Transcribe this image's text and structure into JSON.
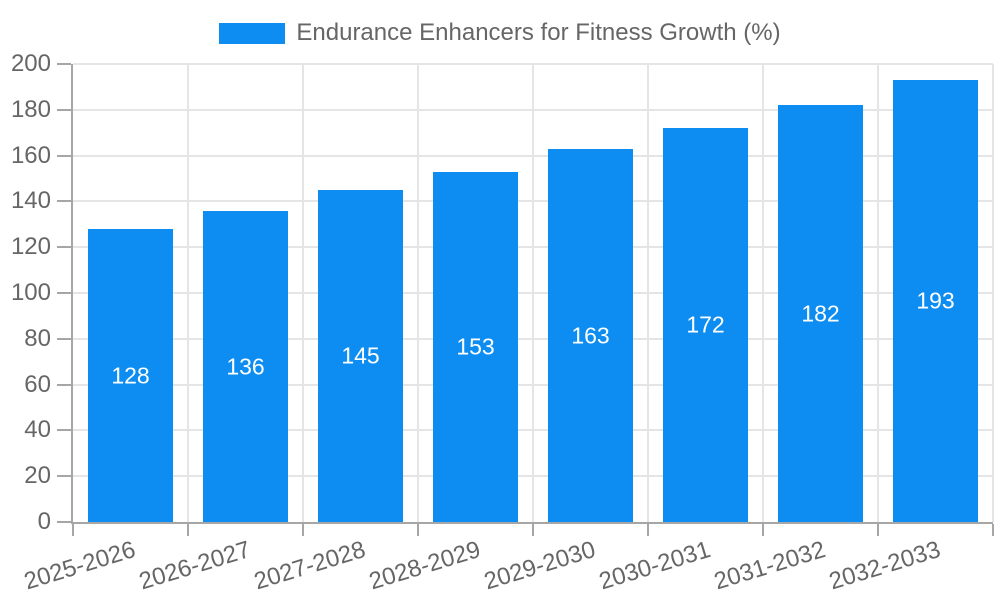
{
  "chart_data": {
    "type": "bar",
    "title": "Endurance Enhancers for Fitness Growth (%)",
    "categories": [
      "2025-2026",
      "2026-2027",
      "2027-2028",
      "2028-2029",
      "2029-2030",
      "2030-2031",
      "2031-2032",
      "2032-2033"
    ],
    "values": [
      128,
      136,
      145,
      153,
      163,
      172,
      182,
      193
    ],
    "xlabel": "",
    "ylabel": "",
    "ylim": [
      0,
      200
    ],
    "ytick_step": 20,
    "grid": true,
    "legend_position": "top",
    "x_label_rotation_deg": 17
  },
  "colors": {
    "bar": "#0d8df2",
    "value_label": "#ffffff",
    "grid": "#e5e5e5",
    "axis": "#a6a6a6",
    "tick_text": "#666666",
    "legend_text": "#666666",
    "background": "#ffffff"
  }
}
